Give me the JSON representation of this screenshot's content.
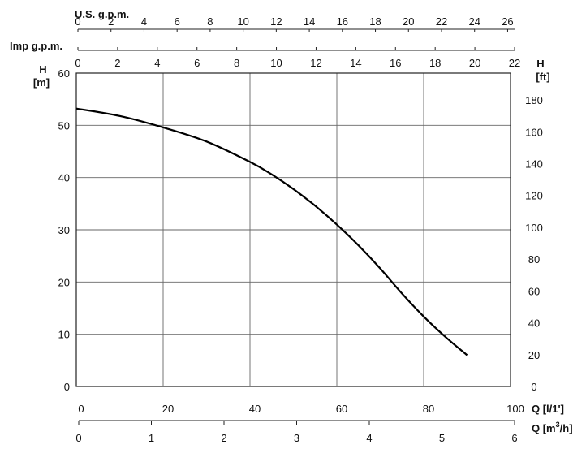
{
  "chart_data": {
    "type": "line",
    "title": "",
    "series": [
      {
        "x": [
          0,
          10,
          20,
          30,
          40,
          45,
          50,
          55,
          60,
          65,
          70,
          75,
          80,
          85,
          90
        ],
        "y": [
          53.2,
          51.8,
          49.6,
          46.9,
          43.0,
          40.6,
          37.8,
          34.6,
          31.0,
          27.0,
          22.6,
          17.8,
          13.4,
          9.5,
          6.0
        ]
      }
    ],
    "xlim": [
      0,
      100
    ],
    "ylim": [
      0,
      60
    ],
    "grid": true,
    "left_axis": {
      "label_line1": "H",
      "label_line2": "[m]",
      "ticks": [
        "0",
        "10",
        "20",
        "30",
        "40",
        "50",
        "60"
      ]
    },
    "right_axis": {
      "label_line1": "H",
      "label_line2": "[ft]",
      "ticks": [
        "0",
        "20",
        "40",
        "60",
        "80",
        "100",
        "120",
        "140",
        "160",
        "180"
      ],
      "max_value": 196.85
    },
    "bottom_axis_lpm": {
      "label": "Q  [l/1']",
      "ticks": [
        "0",
        "20",
        "40",
        "60",
        "80",
        "100"
      ],
      "max_value": 100
    },
    "bottom_axis_m3h": {
      "label_main": "Q  [m",
      "label_sup": "3",
      "label_end": "/h]",
      "ticks": [
        "0",
        "1",
        "2",
        "3",
        "4",
        "5",
        "6"
      ],
      "max_value": 6
    },
    "top_axis_us": {
      "label": "U.S. g.p.m.",
      "ticks": [
        "0",
        "2",
        "4",
        "6",
        "8",
        "10",
        "12",
        "14",
        "16",
        "18",
        "20",
        "22",
        "24",
        "26"
      ],
      "max_value": 26.42
    },
    "top_axis_imp": {
      "label": "Imp g.p.m.",
      "ticks": [
        "0",
        "2",
        "4",
        "6",
        "8",
        "10",
        "12",
        "14",
        "16",
        "18",
        "20",
        "22"
      ],
      "max_value": 22
    }
  }
}
